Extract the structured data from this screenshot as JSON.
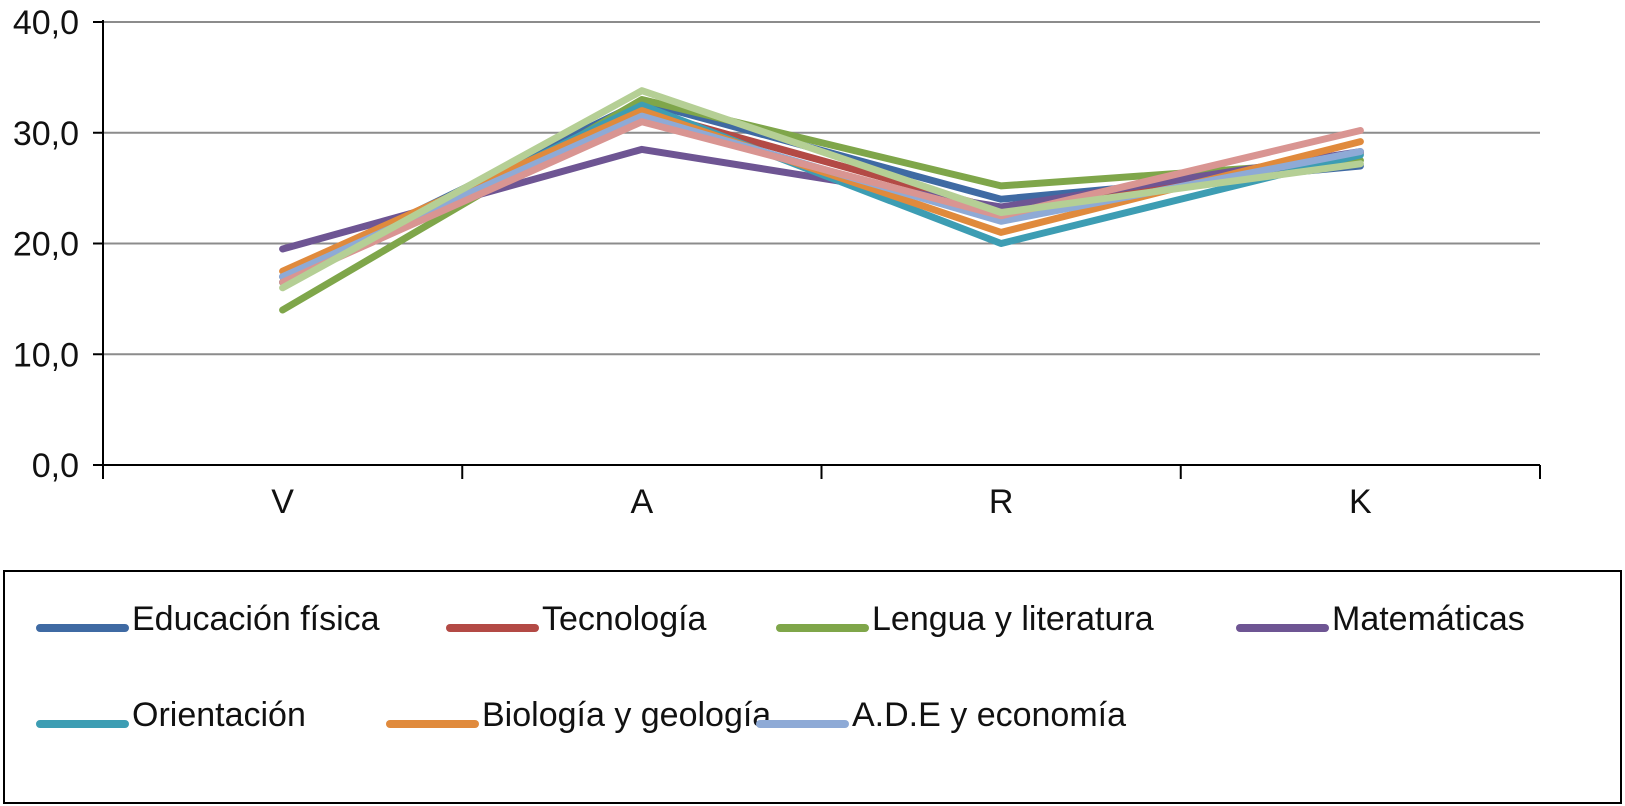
{
  "chart_data": {
    "type": "line",
    "categories": [
      "V",
      "A",
      "R",
      "K"
    ],
    "ylim": [
      0,
      40
    ],
    "yticks": [
      "0,0",
      "10,0",
      "20,0",
      "30,0",
      "40,0"
    ],
    "grid": true,
    "legend_position": "bottom",
    "series": [
      {
        "name": "Educación física",
        "color": "#3f6aa3",
        "values": [
          17.0,
          32.8,
          24.0,
          27.0
        ]
      },
      {
        "name": "Tecnología",
        "color": "#b34a45",
        "values": [
          16.5,
          32.0,
          23.0,
          28.2
        ]
      },
      {
        "name": "Lengua y literatura",
        "color": "#7fa64a",
        "values": [
          14.0,
          33.0,
          25.2,
          27.5
        ]
      },
      {
        "name": "Matemáticas",
        "color": "#6e5593",
        "values": [
          19.5,
          28.5,
          23.3,
          28.3
        ]
      },
      {
        "name": "Orientación",
        "color": "#3d9db3",
        "values": [
          16.5,
          32.5,
          20.0,
          28.0
        ]
      },
      {
        "name": "Biología y geología",
        "color": "#e08a3c",
        "values": [
          17.5,
          32.0,
          21.0,
          29.2
        ]
      },
      {
        "name": "A.D.E y economía",
        "color": "#8eaad6",
        "values": [
          17.0,
          31.5,
          22.0,
          28.3
        ]
      },
      {
        "name": "",
        "color": "#d99592",
        "values": [
          16.5,
          31.0,
          22.5,
          30.2
        ]
      },
      {
        "name": "",
        "color": "#b5cf95",
        "values": [
          16.0,
          33.8,
          22.8,
          27.2
        ]
      }
    ]
  }
}
